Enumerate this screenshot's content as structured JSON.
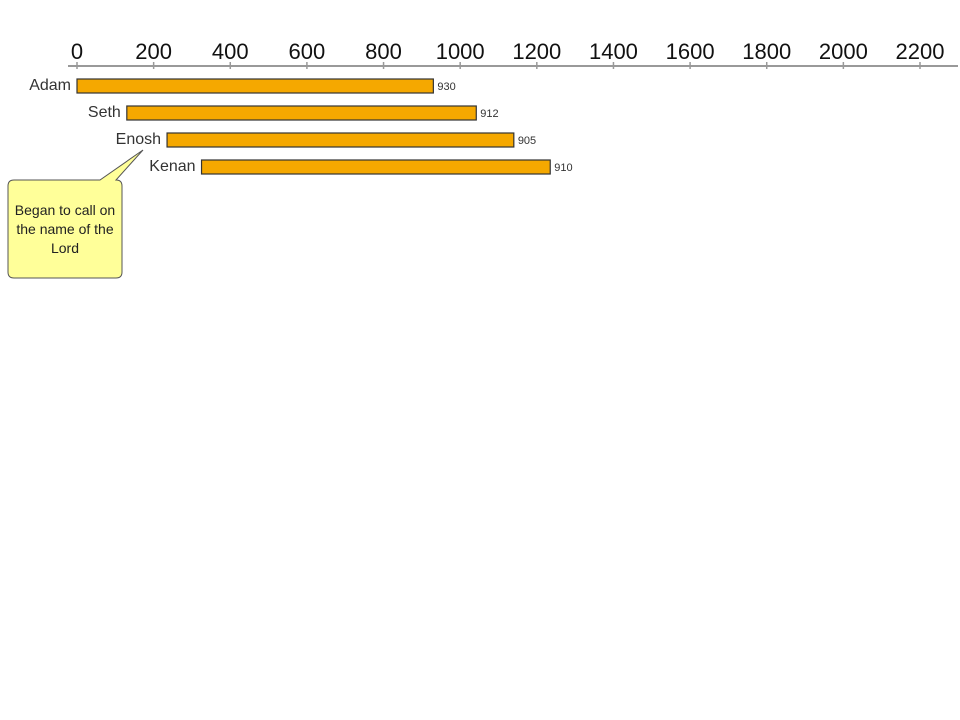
{
  "chart_data": {
    "type": "bar",
    "orientation": "horizontal",
    "categories": [
      "Adam",
      "Seth",
      "Enosh",
      "Kenan"
    ],
    "start": [
      0,
      130,
      235,
      325
    ],
    "values": [
      930,
      912,
      905,
      910
    ],
    "color": "#f5a800",
    "xlim": [
      0,
      2200
    ],
    "xticks": [
      0,
      200,
      400,
      600,
      800,
      1000,
      1200,
      1400,
      1600,
      1800,
      2000,
      2200
    ],
    "annotation": "Began to call on the name of the Lord"
  }
}
